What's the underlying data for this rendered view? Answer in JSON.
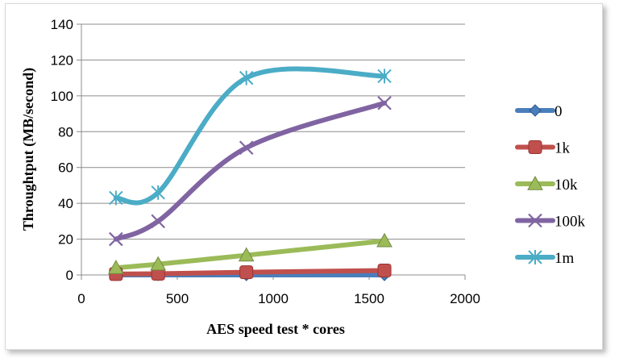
{
  "chart_data": {
    "type": "line",
    "title": "",
    "xlabel": "AES speed test * cores",
    "ylabel": "Throughtput (MB/second)",
    "xlim": [
      0,
      2000
    ],
    "ylim": [
      0,
      140
    ],
    "xticks": [
      0,
      500,
      1000,
      1500,
      2000
    ],
    "yticks": [
      0,
      20,
      40,
      60,
      80,
      100,
      120,
      140
    ],
    "grid": "horizontal",
    "legend_position": "right",
    "series": [
      {
        "name": "0",
        "color": "#4a7ebb",
        "marker": "diamond",
        "x": [
          180,
          400,
          860,
          1580
        ],
        "y": [
          0,
          0,
          0,
          0
        ]
      },
      {
        "name": "1k",
        "color": "#c0504d",
        "marker": "square",
        "x": [
          180,
          400,
          860,
          1580
        ],
        "y": [
          0.5,
          0.7,
          1.5,
          2.5
        ]
      },
      {
        "name": "10k",
        "color": "#9bbb59",
        "marker": "triangle",
        "x": [
          180,
          400,
          860,
          1580
        ],
        "y": [
          4,
          6,
          11,
          19
        ]
      },
      {
        "name": "100k",
        "color": "#8064a2",
        "marker": "x",
        "x": [
          180,
          400,
          860,
          1580
        ],
        "y": [
          20,
          30,
          71,
          96
        ]
      },
      {
        "name": "1m",
        "color": "#4bacc6",
        "marker": "star",
        "x": [
          180,
          400,
          860,
          1580
        ],
        "y": [
          43,
          46,
          110,
          111
        ]
      }
    ]
  }
}
